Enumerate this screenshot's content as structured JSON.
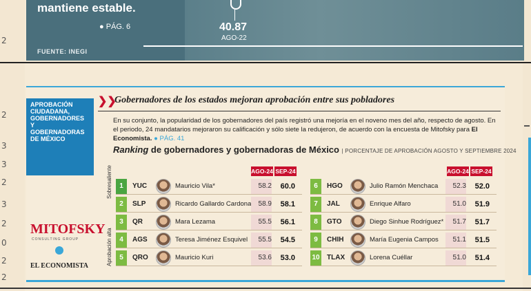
{
  "margin_numbers": [
    "2",
    "2",
    "3",
    "3",
    "2",
    "3",
    "2",
    "0",
    "2",
    "2"
  ],
  "top_banner": {
    "text": "mantiene estable.",
    "page_ref": "● PÁG. 6",
    "source": "FUENTE: INEGI",
    "value": "40.87",
    "value_label": "AGO-22"
  },
  "card": {
    "side_label": "APROBACIÓN CIUDADANA, GOBERNADORES Y GOBERNADORAS DE MÉXICO",
    "headline": "Gobernadores de los estados mejoran aprobación entre sus pobladores",
    "body_part1": "En su conjunto, la popularidad de los gobernadores del país registró una mejoría en el noveno mes del año, respecto de agosto. En el periodo, 24 mandatarios mejoraron su calificación y sólo siete la redujeron, de acuerdo con la encuesta de Mitofsky para ",
    "body_bold": "El Economista.",
    "body_page": "● PÁG. 41",
    "table_title_italic": "Ranking",
    "table_title_rest": " de gobernadores y gobernadoras de México",
    "table_note": "| PORCENTAJE DE APROBACIÓN AGOSTO Y SEPTIEMBRE 2024",
    "col_ago": "AGO-24",
    "col_sep": "SEP-24",
    "tag_sobresaliente": "Sobresaliente",
    "tag_alta": "Aprobación alta",
    "logo_mitofsky": "MITOFSKY",
    "logo_mitofsky_sub": "CONSULTING GROUP",
    "logo_eco": "EL ECONOMISTA",
    "left_rows": [
      {
        "rank": "1",
        "state": "YUC",
        "name": "Mauricio Vila*",
        "ago": "58.2",
        "sep": "60.0",
        "color": "#4aa541"
      },
      {
        "rank": "2",
        "state": "SLP",
        "name": "Ricardo Gallardo Cardona",
        "ago": "58.9",
        "sep": "58.1",
        "color": "#7dbb42"
      },
      {
        "rank": "3",
        "state": "QR",
        "name": "Mara Lezama",
        "ago": "55.5",
        "sep": "56.1",
        "color": "#7dbb42"
      },
      {
        "rank": "4",
        "state": "AGS",
        "name": "Teresa Jiménez Esquivel",
        "ago": "55.5",
        "sep": "54.5",
        "color": "#7dbb42"
      },
      {
        "rank": "5",
        "state": "QRO",
        "name": "Mauricio Kuri",
        "ago": "53.6",
        "sep": "53.0",
        "color": "#7dbb42"
      }
    ],
    "right_rows": [
      {
        "rank": "6",
        "state": "HGO",
        "name": "Julio Ramón Menchaca",
        "ago": "52.3",
        "sep": "52.0",
        "color": "#7dbb42"
      },
      {
        "rank": "7",
        "state": "JAL",
        "name": "Enrique Alfaro",
        "ago": "51.0",
        "sep": "51.9",
        "color": "#7dbb42"
      },
      {
        "rank": "8",
        "state": "GTO",
        "name": "Diego Sinhue Rodríguez*",
        "ago": "51.7",
        "sep": "51.7",
        "color": "#7dbb42"
      },
      {
        "rank": "9",
        "state": "CHIH",
        "name": "María Eugenia Campos",
        "ago": "51.1",
        "sep": "51.5",
        "color": "#7dbb42"
      },
      {
        "rank": "10",
        "state": "TLAX",
        "name": "Lorena Cuéllar",
        "ago": "51.0",
        "sep": "51.4",
        "color": "#7dbb42"
      }
    ]
  }
}
